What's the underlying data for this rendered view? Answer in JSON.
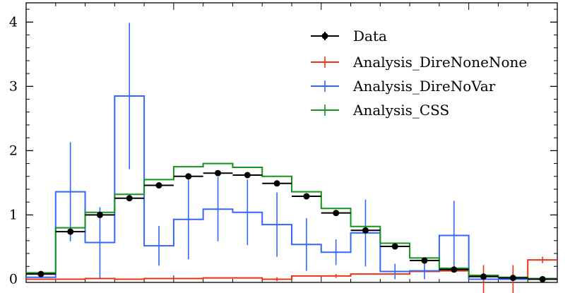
{
  "chart_data": {
    "type": "line",
    "title": "",
    "xlabel": "",
    "ylabel": "",
    "ylim": [
      -0.05,
      4.3
    ],
    "y_ticks": [
      "0",
      "1",
      "2",
      "3",
      "4"
    ],
    "legend_position": "top-right",
    "colors": {
      "data": "#000000",
      "dire_none_none": "#ee3311",
      "dire_no_var": "#3366ff",
      "css": "#109618"
    },
    "bin_edges": [
      0,
      1,
      2,
      3,
      4,
      5,
      6,
      7,
      8,
      9,
      10,
      11,
      12,
      13,
      14,
      15,
      16,
      17,
      18
    ],
    "series": [
      {
        "name": "Data",
        "style": "points",
        "values": [
          0.08,
          0.74,
          1.0,
          1.26,
          1.46,
          1.6,
          1.65,
          1.62,
          1.49,
          1.29,
          1.03,
          0.76,
          0.51,
          0.29,
          0.15,
          0.04,
          0.02,
          0.0
        ],
        "err": [
          0.02,
          0.03,
          0.03,
          0.03,
          0.03,
          0.03,
          0.03,
          0.03,
          0.03,
          0.03,
          0.03,
          0.03,
          0.02,
          0.02,
          0.02,
          0.02,
          0.01,
          0.01
        ]
      },
      {
        "name": "Analysis_DireNoneNone",
        "style": "hist",
        "values": [
          0.0,
          0.0,
          0.01,
          0.0,
          0.01,
          0.01,
          0.02,
          0.02,
          0.0,
          0.05,
          0.05,
          0.08,
          0.08,
          0.12,
          0.13,
          0.0,
          0.0,
          0.3
        ],
        "err": [
          0.0,
          0.0,
          0.0,
          0.0,
          0.0,
          0.0,
          0.0,
          0.0,
          0.03,
          0.0,
          0.03,
          0.0,
          0.0,
          0.0,
          0.0,
          0.22,
          0.22,
          0.05
        ]
      },
      {
        "name": "Analysis_DireNoVar",
        "style": "hist",
        "values": [
          0.03,
          1.36,
          0.57,
          2.85,
          0.52,
          0.93,
          1.09,
          1.04,
          0.85,
          0.54,
          0.42,
          0.72,
          0.12,
          0.13,
          0.68,
          0.0,
          0.0,
          0.0
        ],
        "err": [
          0.01,
          0.77,
          0.55,
          1.14,
          0.31,
          0.62,
          0.5,
          0.51,
          0.5,
          0.41,
          0.2,
          0.52,
          0.12,
          0.13,
          0.54,
          0.0,
          0.0,
          0.0
        ]
      },
      {
        "name": "Analysis_CSS",
        "style": "hist",
        "values": [
          0.1,
          0.8,
          1.04,
          1.32,
          1.55,
          1.75,
          1.8,
          1.74,
          1.6,
          1.36,
          1.1,
          0.82,
          0.56,
          0.33,
          0.17,
          0.06,
          0.03,
          0.01
        ],
        "err": [
          0.01,
          0.01,
          0.01,
          0.01,
          0.01,
          0.01,
          0.01,
          0.01,
          0.01,
          0.01,
          0.01,
          0.01,
          0.01,
          0.01,
          0.01,
          0.01,
          0.01,
          0.01
        ]
      }
    ]
  }
}
